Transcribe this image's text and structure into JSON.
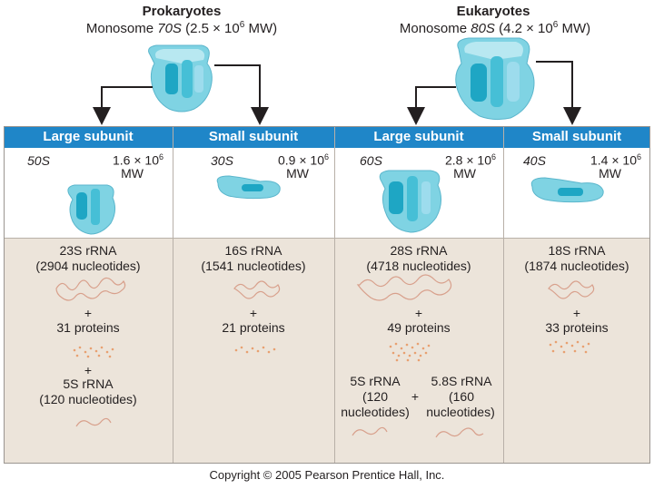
{
  "prokaryotes": {
    "title": "Prokaryotes",
    "monosome_prefix": "Monosome ",
    "monosome_s": "70S",
    "monosome_mw_a": "(2.5 × 10",
    "monosome_mw_exp": "6",
    "monosome_mw_b": " MW)"
  },
  "eukaryotes": {
    "title": "Eukaryotes",
    "monosome_prefix": "Monosome ",
    "monosome_s": "80S",
    "monosome_mw_a": "(4.2 × 10",
    "monosome_mw_exp": "6",
    "monosome_mw_b": " MW)"
  },
  "columns": [
    {
      "title": "Large subunit",
      "s_value": "50S",
      "mw_a": "1.6 × 10",
      "mw_exp": "6",
      "mw_unit": "MW",
      "rrna_name": "23S rRNA",
      "rrna_nt": "(2904 nucleotides)",
      "proteins": "31 proteins",
      "extra_rrna_name": "5S rRNA",
      "extra_rrna_nt": "(120 nucleotides)"
    },
    {
      "title": "Small subunit",
      "s_value": "30S",
      "mw_a": "0.9 × 10",
      "mw_exp": "6",
      "mw_unit": "MW",
      "rrna_name": "16S rRNA",
      "rrna_nt": "(1541 nucleotides)",
      "proteins": "21 proteins"
    },
    {
      "title": "Large subunit",
      "s_value": "60S",
      "mw_a": "2.8 × 10",
      "mw_exp": "6",
      "mw_unit": "MW",
      "rrna_name": "28S rRNA",
      "rrna_nt": "(4718 nucleotides)",
      "proteins": "49 proteins",
      "extra_a_name": "5S rRNA",
      "extra_a_l1": "(120",
      "extra_a_l2": "nucleotides)",
      "extra_b_name": "5.8S rRNA",
      "extra_b_l1": "(160",
      "extra_b_l2": "nucleotides)"
    },
    {
      "title": "Small subunit",
      "s_value": "40S",
      "mw_a": "1.4 × 10",
      "mw_exp": "6",
      "mw_unit": "MW",
      "rrna_name": "18S rRNA",
      "rrna_nt": "(1874 nucleotides)",
      "proteins": "33 proteins"
    }
  ],
  "plus": "+",
  "copyright": "Copyright © 2005 Pearson Prentice Hall, Inc.",
  "colors": {
    "header_bar": "#1f86c8",
    "ribosome_light": "#7fd3e3",
    "ribosome_dark": "#1ea6c4",
    "rna_strand": "#d8a08c",
    "protein_dots": "#e8a070",
    "lower_band": "#ece4da"
  }
}
